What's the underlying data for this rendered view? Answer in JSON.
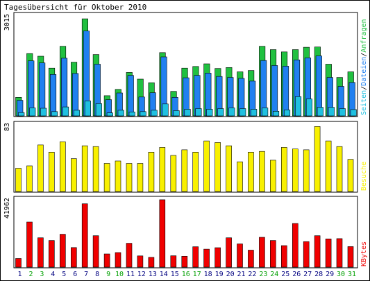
{
  "title": "Tagesübersicht für Oktober 2010",
  "chart_data": [
    {
      "type": "bar",
      "name": "hits",
      "ymax_label": "3015",
      "ylim": [
        0,
        3015
      ],
      "categories": [
        "1",
        "2",
        "3",
        "4",
        "5",
        "6",
        "7",
        "8",
        "9",
        "10",
        "11",
        "12",
        "13",
        "14",
        "15",
        "16",
        "17",
        "18",
        "19",
        "20",
        "21",
        "22",
        "23",
        "24",
        "25",
        "26",
        "27",
        "28",
        "29",
        "30",
        "31"
      ],
      "legend": [
        "Seiten",
        "/",
        "Dateien",
        "/",
        "Anfragen"
      ],
      "series": [
        {
          "name": "Anfragen",
          "color": "#20c040",
          "values": [
            560,
            1880,
            1800,
            1440,
            2100,
            1620,
            2930,
            1850,
            610,
            800,
            1310,
            1110,
            1000,
            1910,
            740,
            1440,
            1490,
            1570,
            1430,
            1460,
            1330,
            1370,
            2100,
            2000,
            1930,
            2000,
            2070,
            2080,
            1560,
            1160,
            1330
          ]
        },
        {
          "name": "Dateien",
          "color": "#2080f0",
          "values": [
            470,
            1660,
            1600,
            1250,
            1740,
            1280,
            2560,
            1560,
            490,
            690,
            1220,
            570,
            700,
            1780,
            560,
            1150,
            1220,
            1290,
            1190,
            1160,
            1130,
            1050,
            1670,
            1520,
            1500,
            1690,
            1750,
            1810,
            1160,
            890,
            1010
          ]
        },
        {
          "name": "Seiten",
          "color": "#20c0e0",
          "values": [
            100,
            240,
            230,
            130,
            270,
            170,
            450,
            370,
            90,
            170,
            120,
            130,
            170,
            360,
            160,
            200,
            220,
            200,
            220,
            240,
            220,
            200,
            240,
            140,
            180,
            580,
            510,
            260,
            260,
            220,
            190
          ]
        }
      ]
    },
    {
      "type": "bar",
      "name": "visits",
      "ymax_label": "83",
      "ylim": [
        0,
        83
      ],
      "legend": [
        "Besuche"
      ],
      "series": [
        {
          "name": "Besuche",
          "color": "#f8f000",
          "values": [
            29,
            32,
            58,
            49,
            62,
            41,
            57,
            56,
            35,
            38,
            35,
            35,
            49,
            55,
            45,
            52,
            49,
            63,
            61,
            57,
            37,
            49,
            50,
            39,
            55,
            53,
            52,
            81,
            63,
            56,
            40
          ]
        }
      ]
    },
    {
      "type": "bar",
      "name": "kbytes",
      "ymax_label": "41962",
      "ylim": [
        0,
        41962
      ],
      "legend": [
        "KBytes"
      ],
      "series": [
        {
          "name": "KBytes",
          "color": "#f00000",
          "values": [
            5400,
            28100,
            18300,
            16600,
            20500,
            12200,
            39500,
            19600,
            8200,
            9100,
            14900,
            7000,
            6100,
            42000,
            7100,
            6800,
            12700,
            11200,
            12100,
            18300,
            14500,
            10600,
            18600,
            16600,
            13400,
            27200,
            15900,
            19600,
            17600,
            17800,
            12800
          ]
        }
      ]
    }
  ],
  "day_colors": {
    "weekday": "#000080",
    "weekend": "#00a000",
    "weekend_days": [
      "2",
      "3",
      "9",
      "10",
      "16",
      "17",
      "23",
      "24",
      "30",
      "31"
    ]
  },
  "colors": {
    "background": "#ffffff",
    "frame": "#000000",
    "bar_outline": "#000000",
    "legend_slash": "#000000"
  }
}
